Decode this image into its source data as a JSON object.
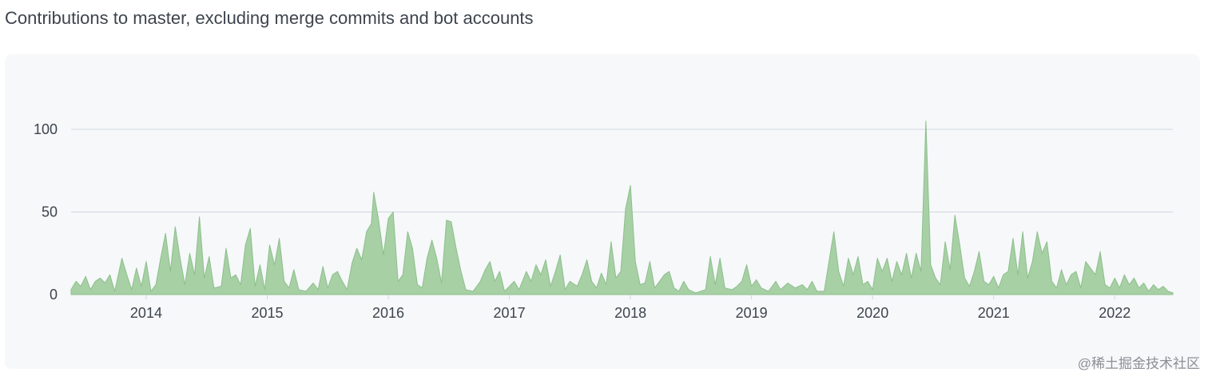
{
  "page": {
    "heading": "Contributions to master, excluding merge commits and bot accounts"
  },
  "watermark": "@稀土掘金技术社区",
  "colors": {
    "area_fill": "#a7d0a5",
    "area_stroke": "#8dbf8b",
    "grid": "#d0d7de",
    "panel": "#f6f8fa",
    "text": "#3d444d"
  },
  "chart_data": {
    "type": "area",
    "xlim": [
      2013.38,
      2022.48
    ],
    "ylim": [
      0,
      100
    ],
    "yticks": [
      0,
      50,
      100
    ],
    "ytick_labels": [
      "0",
      "50",
      "100"
    ],
    "xticks": [
      2014,
      2015,
      2016,
      2017,
      2018,
      2019,
      2020,
      2021,
      2022
    ],
    "xtick_labels": [
      "2014",
      "2015",
      "2016",
      "2017",
      "2018",
      "2019",
      "2020",
      "2021",
      "2022"
    ],
    "grid": "horizontal",
    "series": [
      {
        "points": [
          [
            2013.38,
            3
          ],
          [
            2013.42,
            8
          ],
          [
            2013.46,
            5
          ],
          [
            2013.5,
            11
          ],
          [
            2013.54,
            3
          ],
          [
            2013.58,
            8
          ],
          [
            2013.62,
            10
          ],
          [
            2013.66,
            7
          ],
          [
            2013.7,
            12
          ],
          [
            2013.74,
            2
          ],
          [
            2013.8,
            22
          ],
          [
            2013.84,
            12
          ],
          [
            2013.88,
            3
          ],
          [
            2013.92,
            16
          ],
          [
            2013.96,
            5
          ],
          [
            2014.0,
            20
          ],
          [
            2014.04,
            2
          ],
          [
            2014.08,
            6
          ],
          [
            2014.12,
            22
          ],
          [
            2014.16,
            37
          ],
          [
            2014.2,
            14
          ],
          [
            2014.24,
            41
          ],
          [
            2014.28,
            22
          ],
          [
            2014.32,
            6
          ],
          [
            2014.36,
            25
          ],
          [
            2014.4,
            12
          ],
          [
            2014.44,
            47
          ],
          [
            2014.48,
            10
          ],
          [
            2014.52,
            23
          ],
          [
            2014.56,
            4
          ],
          [
            2014.62,
            5
          ],
          [
            2014.66,
            28
          ],
          [
            2014.7,
            10
          ],
          [
            2014.74,
            12
          ],
          [
            2014.78,
            6
          ],
          [
            2014.82,
            30
          ],
          [
            2014.86,
            40
          ],
          [
            2014.9,
            5
          ],
          [
            2014.94,
            18
          ],
          [
            2014.98,
            3
          ],
          [
            2015.02,
            30
          ],
          [
            2015.06,
            18
          ],
          [
            2015.1,
            34
          ],
          [
            2015.14,
            8
          ],
          [
            2015.18,
            4
          ],
          [
            2015.22,
            15
          ],
          [
            2015.26,
            3
          ],
          [
            2015.32,
            2
          ],
          [
            2015.38,
            7
          ],
          [
            2015.42,
            3
          ],
          [
            2015.46,
            17
          ],
          [
            2015.5,
            4
          ],
          [
            2015.54,
            12
          ],
          [
            2015.58,
            14
          ],
          [
            2015.62,
            8
          ],
          [
            2015.66,
            3
          ],
          [
            2015.7,
            19
          ],
          [
            2015.74,
            28
          ],
          [
            2015.78,
            21
          ],
          [
            2015.82,
            38
          ],
          [
            2015.86,
            43
          ],
          [
            2015.88,
            62
          ],
          [
            2015.92,
            45
          ],
          [
            2015.96,
            24
          ],
          [
            2016.0,
            46
          ],
          [
            2016.04,
            50
          ],
          [
            2016.08,
            8
          ],
          [
            2016.12,
            12
          ],
          [
            2016.16,
            38
          ],
          [
            2016.2,
            28
          ],
          [
            2016.24,
            6
          ],
          [
            2016.28,
            4
          ],
          [
            2016.32,
            22
          ],
          [
            2016.36,
            33
          ],
          [
            2016.4,
            22
          ],
          [
            2016.44,
            7
          ],
          [
            2016.48,
            45
          ],
          [
            2016.52,
            44
          ],
          [
            2016.56,
            28
          ],
          [
            2016.6,
            14
          ],
          [
            2016.64,
            3
          ],
          [
            2016.7,
            2
          ],
          [
            2016.76,
            8
          ],
          [
            2016.8,
            15
          ],
          [
            2016.84,
            20
          ],
          [
            2016.88,
            8
          ],
          [
            2016.92,
            14
          ],
          [
            2016.96,
            2
          ],
          [
            2017.0,
            5
          ],
          [
            2017.04,
            8
          ],
          [
            2017.08,
            3
          ],
          [
            2017.14,
            14
          ],
          [
            2017.18,
            8
          ],
          [
            2017.22,
            18
          ],
          [
            2017.26,
            12
          ],
          [
            2017.3,
            21
          ],
          [
            2017.34,
            5
          ],
          [
            2017.38,
            14
          ],
          [
            2017.42,
            24
          ],
          [
            2017.46,
            3
          ],
          [
            2017.5,
            8
          ],
          [
            2017.56,
            5
          ],
          [
            2017.6,
            12
          ],
          [
            2017.64,
            21
          ],
          [
            2017.68,
            8
          ],
          [
            2017.72,
            4
          ],
          [
            2017.76,
            13
          ],
          [
            2017.8,
            6
          ],
          [
            2017.84,
            32
          ],
          [
            2017.88,
            10
          ],
          [
            2017.92,
            14
          ],
          [
            2017.96,
            52
          ],
          [
            2018.0,
            66
          ],
          [
            2018.04,
            20
          ],
          [
            2018.08,
            6
          ],
          [
            2018.12,
            7
          ],
          [
            2018.16,
            20
          ],
          [
            2018.2,
            4
          ],
          [
            2018.24,
            8
          ],
          [
            2018.28,
            12
          ],
          [
            2018.32,
            14
          ],
          [
            2018.36,
            4
          ],
          [
            2018.4,
            2
          ],
          [
            2018.44,
            8
          ],
          [
            2018.48,
            3
          ],
          [
            2018.54,
            1
          ],
          [
            2018.62,
            3
          ],
          [
            2018.66,
            23
          ],
          [
            2018.7,
            6
          ],
          [
            2018.74,
            22
          ],
          [
            2018.78,
            4
          ],
          [
            2018.84,
            3
          ],
          [
            2018.88,
            5
          ],
          [
            2018.92,
            8
          ],
          [
            2018.96,
            18
          ],
          [
            2019.0,
            5
          ],
          [
            2019.04,
            9
          ],
          [
            2019.08,
            4
          ],
          [
            2019.14,
            2
          ],
          [
            2019.2,
            8
          ],
          [
            2019.24,
            3
          ],
          [
            2019.3,
            7
          ],
          [
            2019.36,
            4
          ],
          [
            2019.42,
            6
          ],
          [
            2019.46,
            3
          ],
          [
            2019.5,
            8
          ],
          [
            2019.54,
            2
          ],
          [
            2019.6,
            2
          ],
          [
            2019.64,
            20
          ],
          [
            2019.68,
            38
          ],
          [
            2019.72,
            14
          ],
          [
            2019.76,
            5
          ],
          [
            2019.8,
            22
          ],
          [
            2019.84,
            12
          ],
          [
            2019.88,
            23
          ],
          [
            2019.92,
            6
          ],
          [
            2019.96,
            8
          ],
          [
            2020.0,
            3
          ],
          [
            2020.04,
            22
          ],
          [
            2020.08,
            14
          ],
          [
            2020.12,
            22
          ],
          [
            2020.16,
            8
          ],
          [
            2020.2,
            20
          ],
          [
            2020.24,
            12
          ],
          [
            2020.28,
            25
          ],
          [
            2020.32,
            10
          ],
          [
            2020.36,
            25
          ],
          [
            2020.4,
            14
          ],
          [
            2020.44,
            105
          ],
          [
            2020.48,
            18
          ],
          [
            2020.52,
            10
          ],
          [
            2020.56,
            6
          ],
          [
            2020.6,
            32
          ],
          [
            2020.64,
            15
          ],
          [
            2020.68,
            48
          ],
          [
            2020.72,
            30
          ],
          [
            2020.76,
            10
          ],
          [
            2020.8,
            5
          ],
          [
            2020.84,
            14
          ],
          [
            2020.88,
            26
          ],
          [
            2020.92,
            8
          ],
          [
            2020.96,
            6
          ],
          [
            2021.0,
            11
          ],
          [
            2021.04,
            4
          ],
          [
            2021.08,
            12
          ],
          [
            2021.12,
            14
          ],
          [
            2021.16,
            34
          ],
          [
            2021.2,
            12
          ],
          [
            2021.24,
            38
          ],
          [
            2021.28,
            10
          ],
          [
            2021.32,
            20
          ],
          [
            2021.36,
            38
          ],
          [
            2021.4,
            25
          ],
          [
            2021.44,
            32
          ],
          [
            2021.48,
            8
          ],
          [
            2021.52,
            4
          ],
          [
            2021.56,
            15
          ],
          [
            2021.6,
            6
          ],
          [
            2021.64,
            12
          ],
          [
            2021.68,
            14
          ],
          [
            2021.72,
            4
          ],
          [
            2021.76,
            20
          ],
          [
            2021.8,
            16
          ],
          [
            2021.84,
            12
          ],
          [
            2021.88,
            26
          ],
          [
            2021.92,
            6
          ],
          [
            2021.96,
            4
          ],
          [
            2022.0,
            10
          ],
          [
            2022.04,
            4
          ],
          [
            2022.08,
            12
          ],
          [
            2022.12,
            6
          ],
          [
            2022.16,
            10
          ],
          [
            2022.2,
            4
          ],
          [
            2022.24,
            7
          ],
          [
            2022.28,
            2
          ],
          [
            2022.32,
            6
          ],
          [
            2022.36,
            3
          ],
          [
            2022.4,
            5
          ],
          [
            2022.44,
            2
          ],
          [
            2022.48,
            1
          ]
        ]
      }
    ]
  }
}
